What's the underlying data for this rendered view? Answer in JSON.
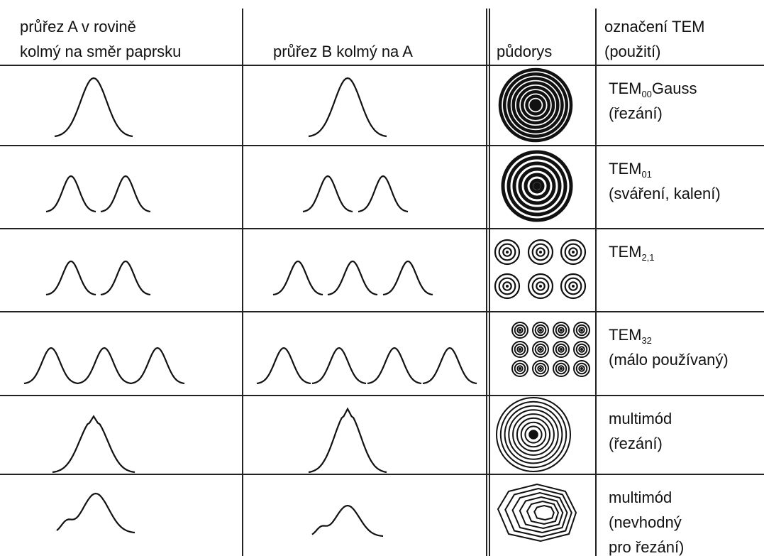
{
  "header": {
    "columns": [
      [
        "průřez A v rovině",
        "kolmý na směr paprsku"
      ],
      [
        "průřez B kolmý na A"
      ],
      [
        "půdorys"
      ],
      [
        "označení TEM",
        "(použití)"
      ]
    ]
  },
  "rows": [
    {
      "mode": "TEM",
      "sub": "00",
      "suffix": "Gauss",
      "notes": [
        "(řezání)"
      ]
    },
    {
      "mode": "TEM",
      "sub": "01",
      "notes": [
        "(sváření, kalení)"
      ]
    },
    {
      "mode": "TEM",
      "sub": "2,1"
    },
    {
      "mode": "TEM",
      "sub": "32",
      "notes": [
        "(málo používaný)"
      ]
    },
    {
      "mode": "multimód",
      "notes": [
        "(řezání)"
      ]
    },
    {
      "mode": "multimód",
      "notes": [
        "(nevhodný",
        "pro řezání)"
      ]
    }
  ]
}
